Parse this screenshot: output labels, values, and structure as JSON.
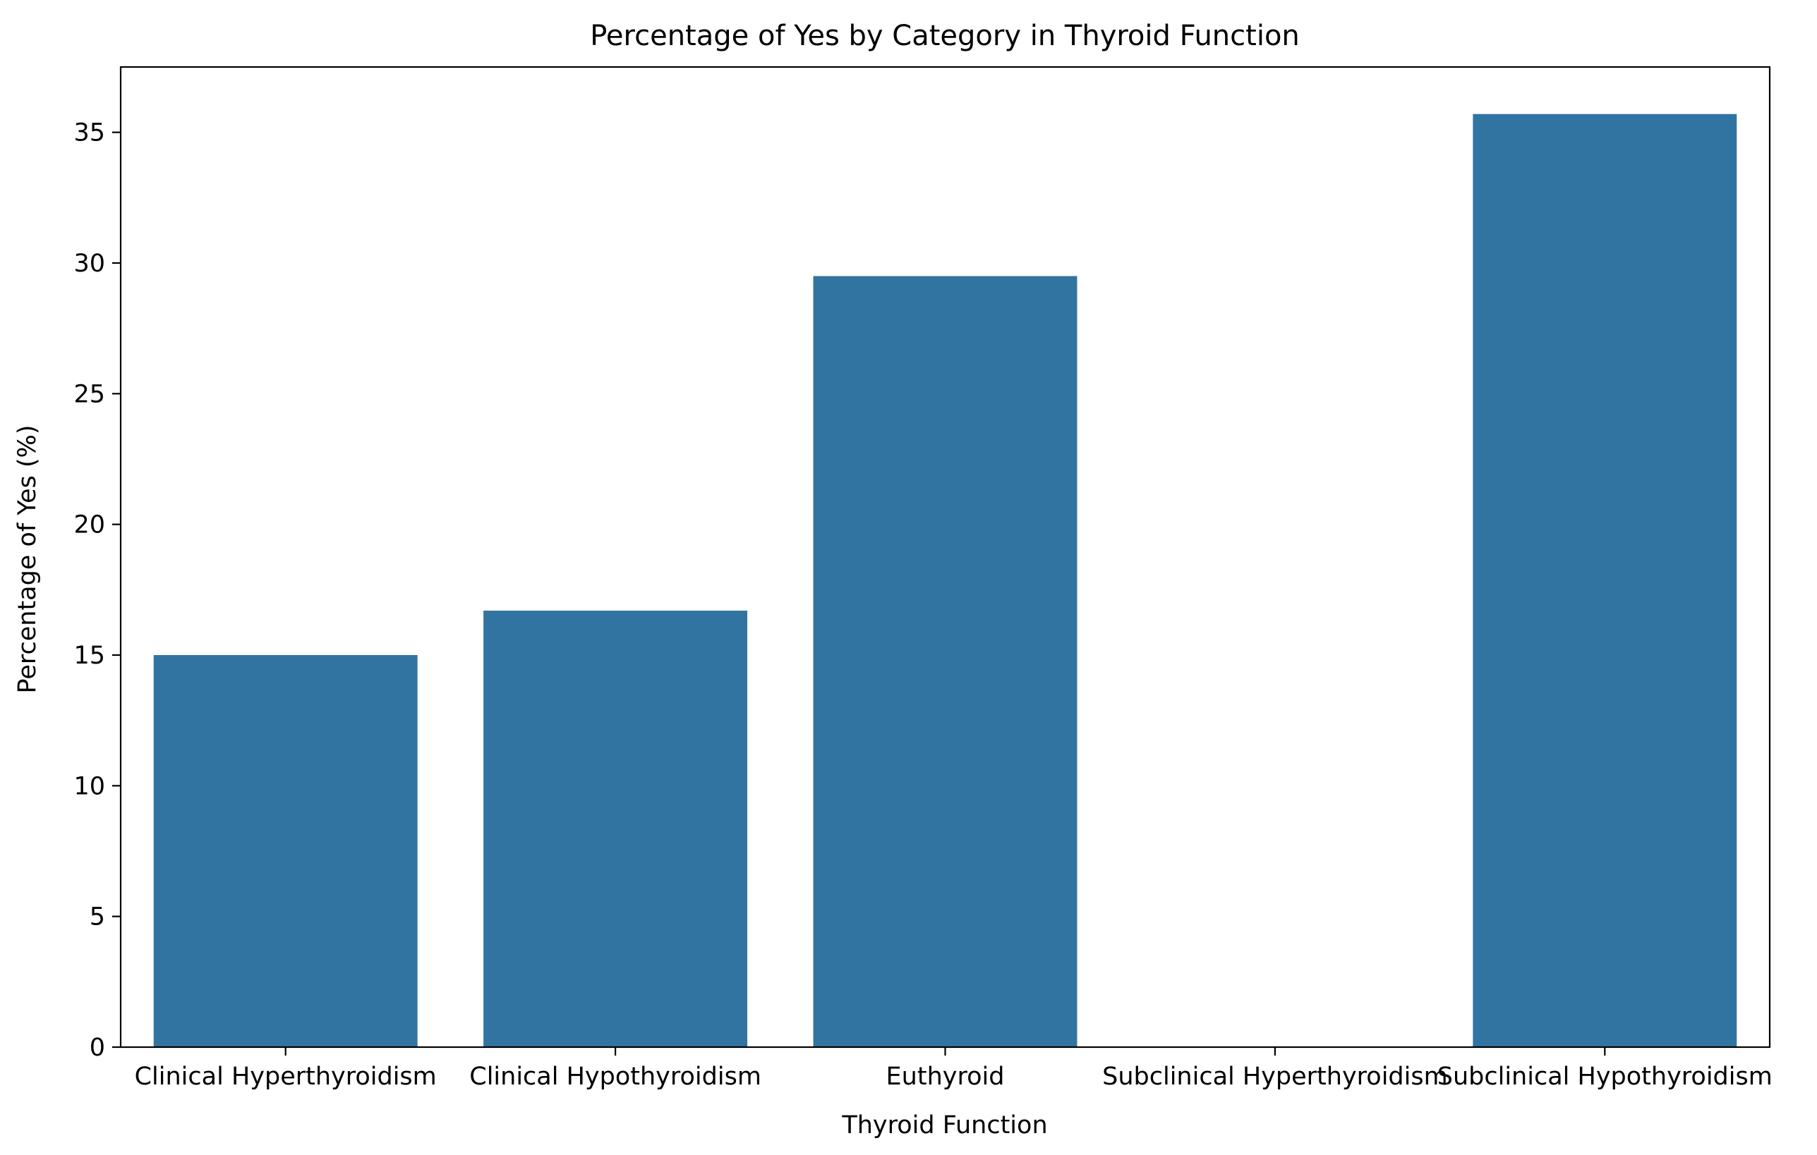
{
  "chart_data": {
    "type": "bar",
    "title": "Percentage of Yes by Category in Thyroid Function",
    "xlabel": "Thyroid Function",
    "ylabel": "Percentage of Yes (%)",
    "categories": [
      "Clinical Hyperthyroidism",
      "Clinical Hypothyroidism",
      "Euthyroid",
      "Subclinical Hyperthyroidism",
      "Subclinical Hypothyroidism"
    ],
    "values": [
      15.0,
      16.7,
      29.5,
      0,
      35.7
    ],
    "ylim": [
      0,
      37.5
    ],
    "yticks": [
      0,
      5,
      10,
      15,
      20,
      25,
      30,
      35
    ],
    "bar_color": "#3274a1",
    "grid": false,
    "legend": "none"
  }
}
